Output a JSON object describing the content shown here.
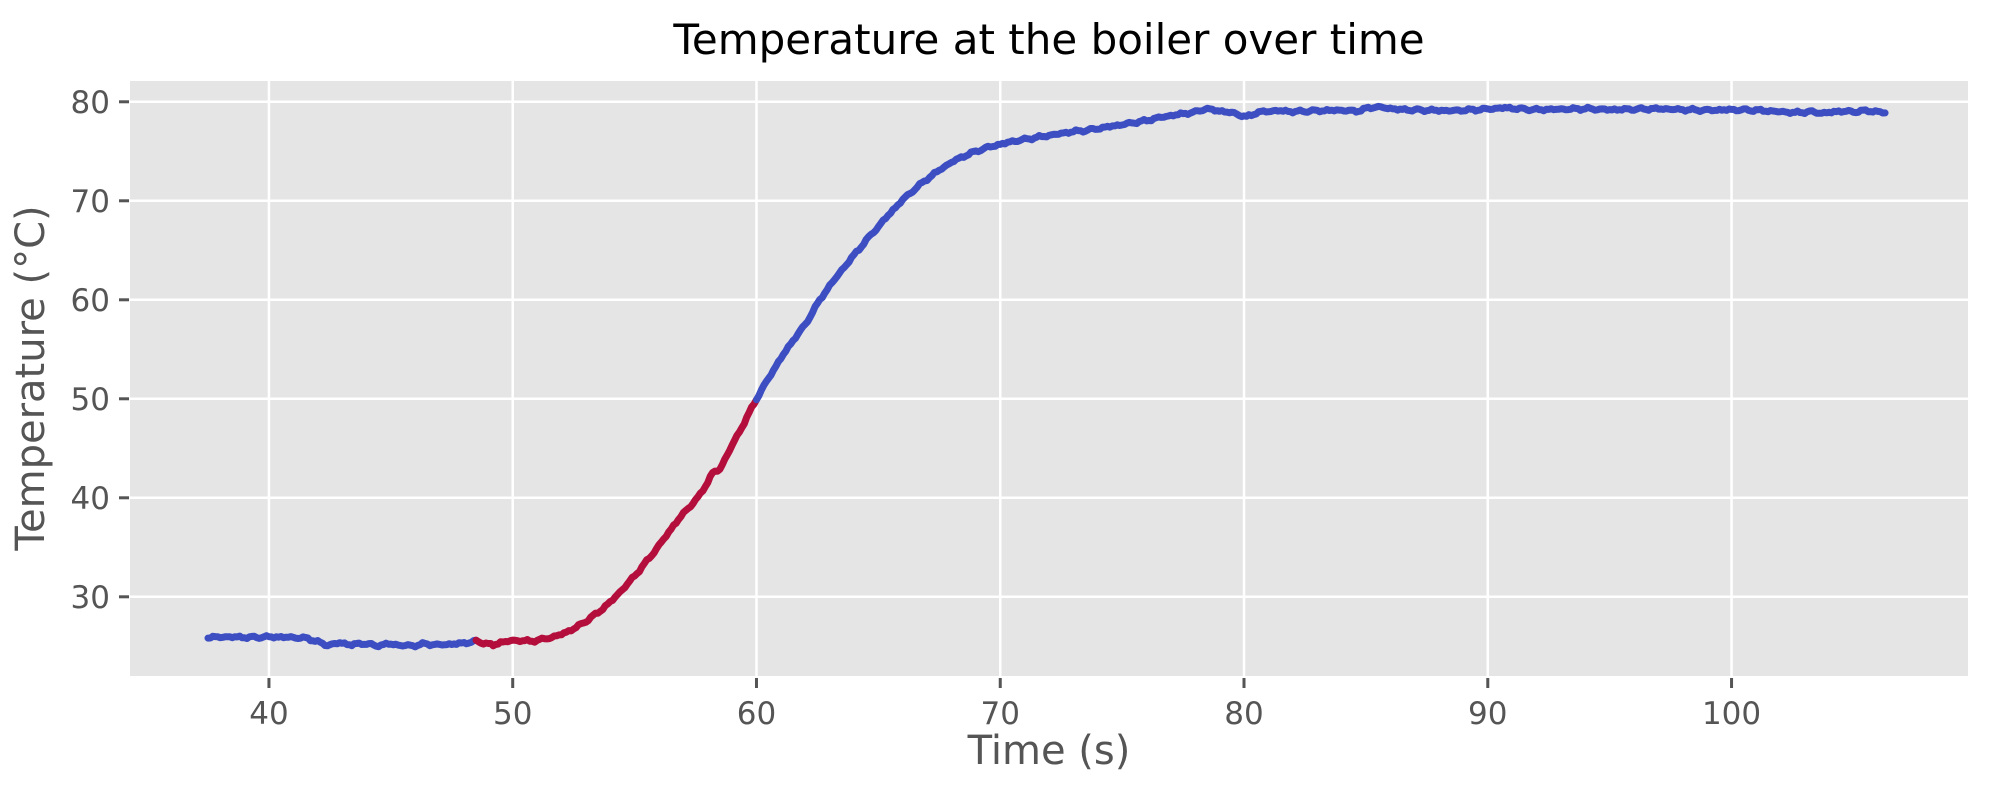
{
  "chart_data": {
    "type": "line",
    "title": "Temperature at the boiler over time",
    "xlabel": "Time (s)",
    "ylabel": "Temperature (°C)",
    "xlim": [
      34.3,
      109.7
    ],
    "ylim": [
      22.0,
      82.1
    ],
    "xticks": [
      40,
      50,
      60,
      70,
      80,
      90,
      100
    ],
    "yticks": [
      30,
      40,
      50,
      60,
      70,
      80
    ],
    "grid": true,
    "legend": "none",
    "style": {
      "plot_bg": "#e5e5e5",
      "figure_bg": "#ffffff",
      "grid_color": "#ffffff",
      "tick_color": "#555555",
      "label_color": "#555555",
      "title_color": "#000000",
      "line_width": 7,
      "noise_amplitude": 0.14
    },
    "series": [
      {
        "name": "temperature-initial-blue",
        "color": "#3c4ec2",
        "points": [
          [
            37.5,
            25.9
          ],
          [
            38.3,
            25.95
          ],
          [
            39.2,
            25.9
          ],
          [
            40.1,
            25.95
          ],
          [
            41.0,
            25.9
          ],
          [
            41.6,
            25.8
          ],
          [
            42.0,
            25.45
          ],
          [
            42.4,
            25.1
          ],
          [
            42.9,
            25.35
          ],
          [
            43.4,
            25.15
          ],
          [
            43.9,
            25.3
          ],
          [
            44.4,
            25.05
          ],
          [
            44.9,
            25.25
          ],
          [
            45.4,
            25.1
          ],
          [
            45.9,
            25.05
          ],
          [
            46.4,
            25.25
          ],
          [
            46.9,
            25.15
          ],
          [
            47.4,
            25.2
          ],
          [
            47.9,
            25.3
          ],
          [
            48.5,
            25.5
          ]
        ]
      },
      {
        "name": "temperature-heating-red",
        "color": "#b40e3c",
        "points": [
          [
            48.5,
            25.5
          ],
          [
            48.9,
            25.3
          ],
          [
            49.2,
            25.1
          ],
          [
            49.5,
            25.4
          ],
          [
            49.9,
            25.55
          ],
          [
            50.3,
            25.6
          ],
          [
            50.7,
            25.5
          ],
          [
            51.1,
            25.65
          ],
          [
            51.6,
            25.9
          ],
          [
            52.1,
            26.3
          ],
          [
            52.6,
            26.9
          ],
          [
            53.1,
            27.7
          ],
          [
            53.6,
            28.6
          ],
          [
            54.1,
            29.7
          ],
          [
            54.6,
            31.0
          ],
          [
            55.1,
            32.4
          ],
          [
            55.6,
            33.9
          ],
          [
            56.1,
            35.5
          ],
          [
            56.6,
            37.2
          ],
          [
            57.1,
            38.7
          ],
          [
            57.6,
            40.0
          ],
          [
            58.0,
            41.6
          ],
          [
            58.2,
            42.5
          ],
          [
            58.5,
            42.9
          ],
          [
            59.0,
            45.3
          ],
          [
            59.5,
            47.6
          ],
          [
            60.0,
            50.0
          ]
        ]
      },
      {
        "name": "temperature-plateau-blue",
        "color": "#3c4ec2",
        "points": [
          [
            60.0,
            50.0
          ],
          [
            60.5,
            52.1
          ],
          [
            61.0,
            54.1
          ],
          [
            61.5,
            55.9
          ],
          [
            62.0,
            57.5
          ],
          [
            62.6,
            60.0
          ],
          [
            63.0,
            61.4
          ],
          [
            63.5,
            63.0
          ],
          [
            64.0,
            64.5
          ],
          [
            64.5,
            66.0
          ],
          [
            65.0,
            67.4
          ],
          [
            65.5,
            68.8
          ],
          [
            66.0,
            70.1
          ],
          [
            66.5,
            71.2
          ],
          [
            67.0,
            72.2
          ],
          [
            67.5,
            73.1
          ],
          [
            68.0,
            73.9
          ],
          [
            68.5,
            74.5
          ],
          [
            69.0,
            75.0
          ],
          [
            69.5,
            75.4
          ],
          [
            70.0,
            75.7
          ],
          [
            70.5,
            76.0
          ],
          [
            71.0,
            76.2
          ],
          [
            71.5,
            76.4
          ],
          [
            72.0,
            76.6
          ],
          [
            72.5,
            76.8
          ],
          [
            73.0,
            77.0
          ],
          [
            73.5,
            77.1
          ],
          [
            74.0,
            77.3
          ],
          [
            74.5,
            77.5
          ],
          [
            75.0,
            77.7
          ],
          [
            75.5,
            77.9
          ],
          [
            76.0,
            78.1
          ],
          [
            76.5,
            78.4
          ],
          [
            77.0,
            78.6
          ],
          [
            77.5,
            78.8
          ],
          [
            78.0,
            78.95
          ],
          [
            78.4,
            79.3
          ],
          [
            78.8,
            79.15
          ],
          [
            79.2,
            79.0
          ],
          [
            79.6,
            78.85
          ],
          [
            80.1,
            78.45
          ],
          [
            80.5,
            78.9
          ],
          [
            81.0,
            79.05
          ],
          [
            81.5,
            79.1
          ],
          [
            82.0,
            79.0
          ],
          [
            83.0,
            79.1
          ],
          [
            84.0,
            79.15
          ],
          [
            84.6,
            79.05
          ],
          [
            85.0,
            79.3
          ],
          [
            85.4,
            79.5
          ],
          [
            85.9,
            79.35
          ],
          [
            86.5,
            79.2
          ],
          [
            87.5,
            79.15
          ],
          [
            88.5,
            79.1
          ],
          [
            89.5,
            79.2
          ],
          [
            90.2,
            79.3
          ],
          [
            90.7,
            79.4
          ],
          [
            91.2,
            79.3
          ],
          [
            92.0,
            79.2
          ],
          [
            93.0,
            79.25
          ],
          [
            94.0,
            79.3
          ],
          [
            95.0,
            79.2
          ],
          [
            96.0,
            79.25
          ],
          [
            97.0,
            79.3
          ],
          [
            98.0,
            79.2
          ],
          [
            99.0,
            79.15
          ],
          [
            100.0,
            79.2
          ],
          [
            101.0,
            79.15
          ],
          [
            102.0,
            79.0
          ],
          [
            102.6,
            78.9
          ],
          [
            103.2,
            79.0
          ],
          [
            103.8,
            78.85
          ],
          [
            104.4,
            79.05
          ],
          [
            105.0,
            79.0
          ],
          [
            105.6,
            79.1
          ],
          [
            106.3,
            78.9
          ]
        ]
      }
    ]
  }
}
